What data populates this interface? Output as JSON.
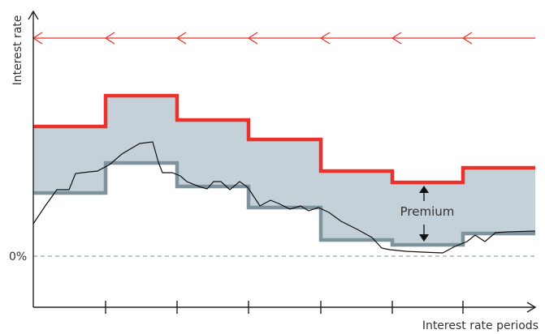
{
  "labels": {
    "y_axis": "Interest rate",
    "x_axis": "Interest rate periods",
    "zero": "0%",
    "premium": "Premium"
  },
  "colors": {
    "background": "#ffffff",
    "axis": "#222222",
    "upper_step": "#e8322b",
    "lower_step": "#7f939e",
    "band_fill": "#c5d1d8",
    "market_rate": "#111111",
    "zero_line": "#8aa4b6",
    "reset_arrows": "#e8322b",
    "premium_arrows": "#111111"
  },
  "icons": {
    "reset_arrow": "arrow-left-icon",
    "premium_up": "arrow-up-icon",
    "premium_down": "arrow-down-icon"
  }
}
